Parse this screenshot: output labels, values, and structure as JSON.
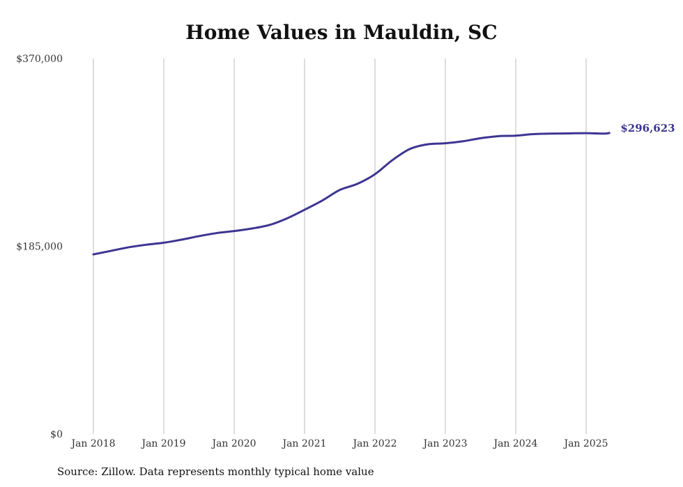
{
  "chart_data": {
    "type": "line",
    "title": "Home Values in Mauldin, SC",
    "xlabel": "",
    "ylabel": "",
    "ylim": [
      0,
      370000
    ],
    "y_ticks": [
      0,
      185000,
      370000
    ],
    "y_tick_labels": [
      "$0",
      "$185,000",
      "$370,000"
    ],
    "x_ticks": [
      2018,
      2019,
      2020,
      2021,
      2022,
      2023,
      2024,
      2025
    ],
    "x_tick_labels": [
      "Jan 2018",
      "Jan 2019",
      "Jan 2020",
      "Jan 2021",
      "Jan 2022",
      "Jan 2023",
      "Jan 2024",
      "Jan 2025"
    ],
    "grid": "vertical",
    "color": "#3c3592",
    "end_label": "$296,623",
    "series": [
      {
        "x": [
          2018.0,
          2018.25,
          2018.5,
          2018.75,
          2019.0,
          2019.25,
          2019.5,
          2019.75,
          2020.0,
          2020.25,
          2020.5,
          2020.75,
          2021.0,
          2021.25,
          2021.5,
          2021.75,
          2022.0,
          2022.25,
          2022.5,
          2022.75,
          2023.0,
          2023.25,
          2023.5,
          2023.75,
          2024.0,
          2024.25,
          2024.5,
          2024.75,
          2025.0,
          2025.25,
          2025.33
        ],
        "values": [
          177000,
          180500,
          184000,
          186500,
          188500,
          191500,
          195000,
          198000,
          200000,
          202500,
          206000,
          212500,
          221000,
          230000,
          240500,
          246500,
          256000,
          270000,
          281000,
          285500,
          286500,
          288500,
          291500,
          293500,
          294000,
          295500,
          296000,
          296200,
          296500,
          296000,
          296623
        ]
      }
    ]
  },
  "source_text": "Source: Zillow. Data represents monthly typical home value"
}
